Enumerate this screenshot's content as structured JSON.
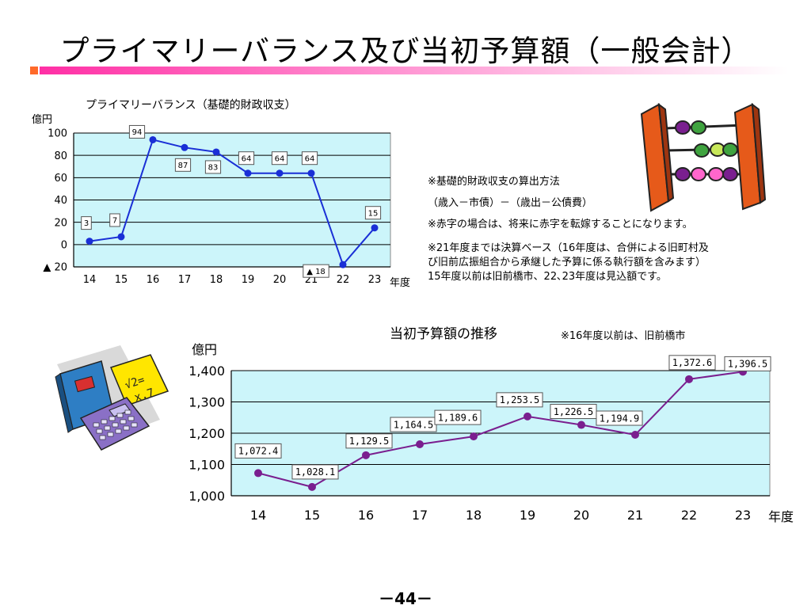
{
  "page": {
    "title": "プライマリーバランス及び当初予算額（一般会計）",
    "page_number": "－44－"
  },
  "notes": {
    "method_title": "※基礎的財政収支の算出方法",
    "formula": "（歳入－市債）－（歳出－公債費）",
    "deficit_note": "※赤字の場合は、将来に赤字を転嫁することになります。",
    "settlement_line1": "※21年度までは決算ベース（16年度は、合併による旧町村及",
    "settlement_line2": "び旧前広振組合から承継した予算に係る執行額を含みます）",
    "settlement_line3": "15年度以前は旧前橋市、22､23年度は見込額です。",
    "budget_note": "※16年度以前は、旧前橋市"
  },
  "images": {
    "abacus": "abacus-icon",
    "calculator": "calculator-book-icon",
    "colors": {
      "abacus_frame": "#e65a1a",
      "bead_purple": "#7a1f8f",
      "bead_green": "#3fa33f",
      "bead_pink": "#ff66cc"
    }
  },
  "chart_data": [
    {
      "type": "line",
      "title": "プライマリーバランス（基礎的財政収支）",
      "ylabel": "億円",
      "xlabel": "年度",
      "categories": [
        "14",
        "15",
        "16",
        "17",
        "18",
        "19",
        "20",
        "21",
        "22",
        "23"
      ],
      "series": [
        {
          "values": [
            3,
            7,
            94,
            87,
            83,
            64,
            64,
            64,
            -18,
            15
          ],
          "labels": [
            "3",
            "7",
            "94",
            "87",
            "83",
            "64",
            "64",
            "64",
            "▲ 18",
            "15"
          ]
        }
      ],
      "ylim": [
        -20,
        100
      ],
      "yticks": [
        {
          "value": 100,
          "label": "100"
        },
        {
          "value": 80,
          "label": "80"
        },
        {
          "value": 60,
          "label": "60"
        },
        {
          "value": 40,
          "label": "40"
        },
        {
          "value": 20,
          "label": "20"
        },
        {
          "value": 0,
          "label": "0"
        },
        {
          "value": -20,
          "label": "▲ 20"
        }
      ],
      "grid": true,
      "colors": {
        "line": "#1a2fd6",
        "plot_bg": "#ccf5fa",
        "grid": "#000000"
      }
    },
    {
      "type": "line",
      "title": "当初予算額の推移",
      "ylabel": "億円",
      "xlabel": "年度",
      "categories": [
        "14",
        "15",
        "16",
        "17",
        "18",
        "19",
        "20",
        "21",
        "22",
        "23"
      ],
      "series": [
        {
          "values": [
            1072.4,
            1028.1,
            1129.5,
            1164.5,
            1189.6,
            1253.5,
            1226.5,
            1194.9,
            1372.6,
            1396.5
          ],
          "labels": [
            "1,072.4",
            "1,028.1",
            "1,129.5",
            "1,164.5",
            "1,189.6",
            "1,253.5",
            "1,226.5",
            "1,194.9",
            "1,372.6",
            "1,396.5"
          ]
        }
      ],
      "ylim": [
        1000,
        1400
      ],
      "yticks": [
        {
          "value": 1400,
          "label": "1,400"
        },
        {
          "value": 1300,
          "label": "1,300"
        },
        {
          "value": 1200,
          "label": "1,200"
        },
        {
          "value": 1100,
          "label": "1,100"
        },
        {
          "value": 1000,
          "label": "1,000"
        }
      ],
      "grid": true,
      "colors": {
        "line": "#7a1f8f",
        "plot_bg": "#ccf5fa",
        "grid": "#000000"
      }
    }
  ]
}
